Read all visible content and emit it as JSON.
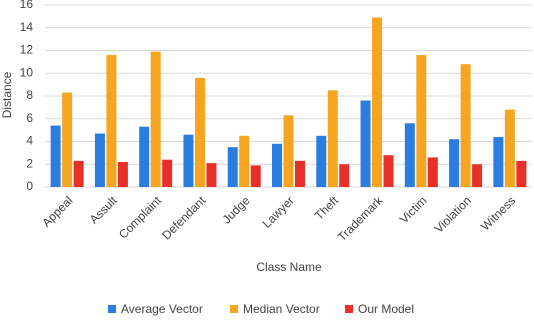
{
  "chart_data": {
    "type": "bar",
    "x_label": "Class Name",
    "y_label": "Distance",
    "categories": [
      "Appeal",
      "Assult",
      "Complaint",
      "Defendant",
      "Judge",
      "Lawyer",
      "Theft",
      "Trademark",
      "Victim",
      "Violation",
      "Witness"
    ],
    "series": [
      {
        "name": "Average Vector",
        "color": "#2b7de0",
        "values": [
          5.4,
          4.7,
          5.3,
          4.6,
          3.5,
          3.8,
          4.5,
          7.6,
          5.6,
          4.2,
          4.4
        ]
      },
      {
        "name": "Median Vector",
        "color": "#f5a51f",
        "values": [
          8.3,
          11.6,
          11.9,
          9.6,
          4.5,
          6.3,
          8.5,
          14.9,
          11.6,
          10.8,
          6.8
        ]
      },
      {
        "name": "Our Model",
        "color": "#e8302a",
        "values": [
          2.3,
          2.2,
          2.4,
          2.1,
          1.9,
          2.3,
          2.0,
          2.8,
          2.6,
          2.0,
          2.3
        ]
      }
    ],
    "ylim": [
      0,
      16
    ],
    "yticks": [
      0,
      2,
      4,
      6,
      8,
      10,
      12,
      14,
      16
    ],
    "grid": true,
    "legend": "bottom"
  }
}
